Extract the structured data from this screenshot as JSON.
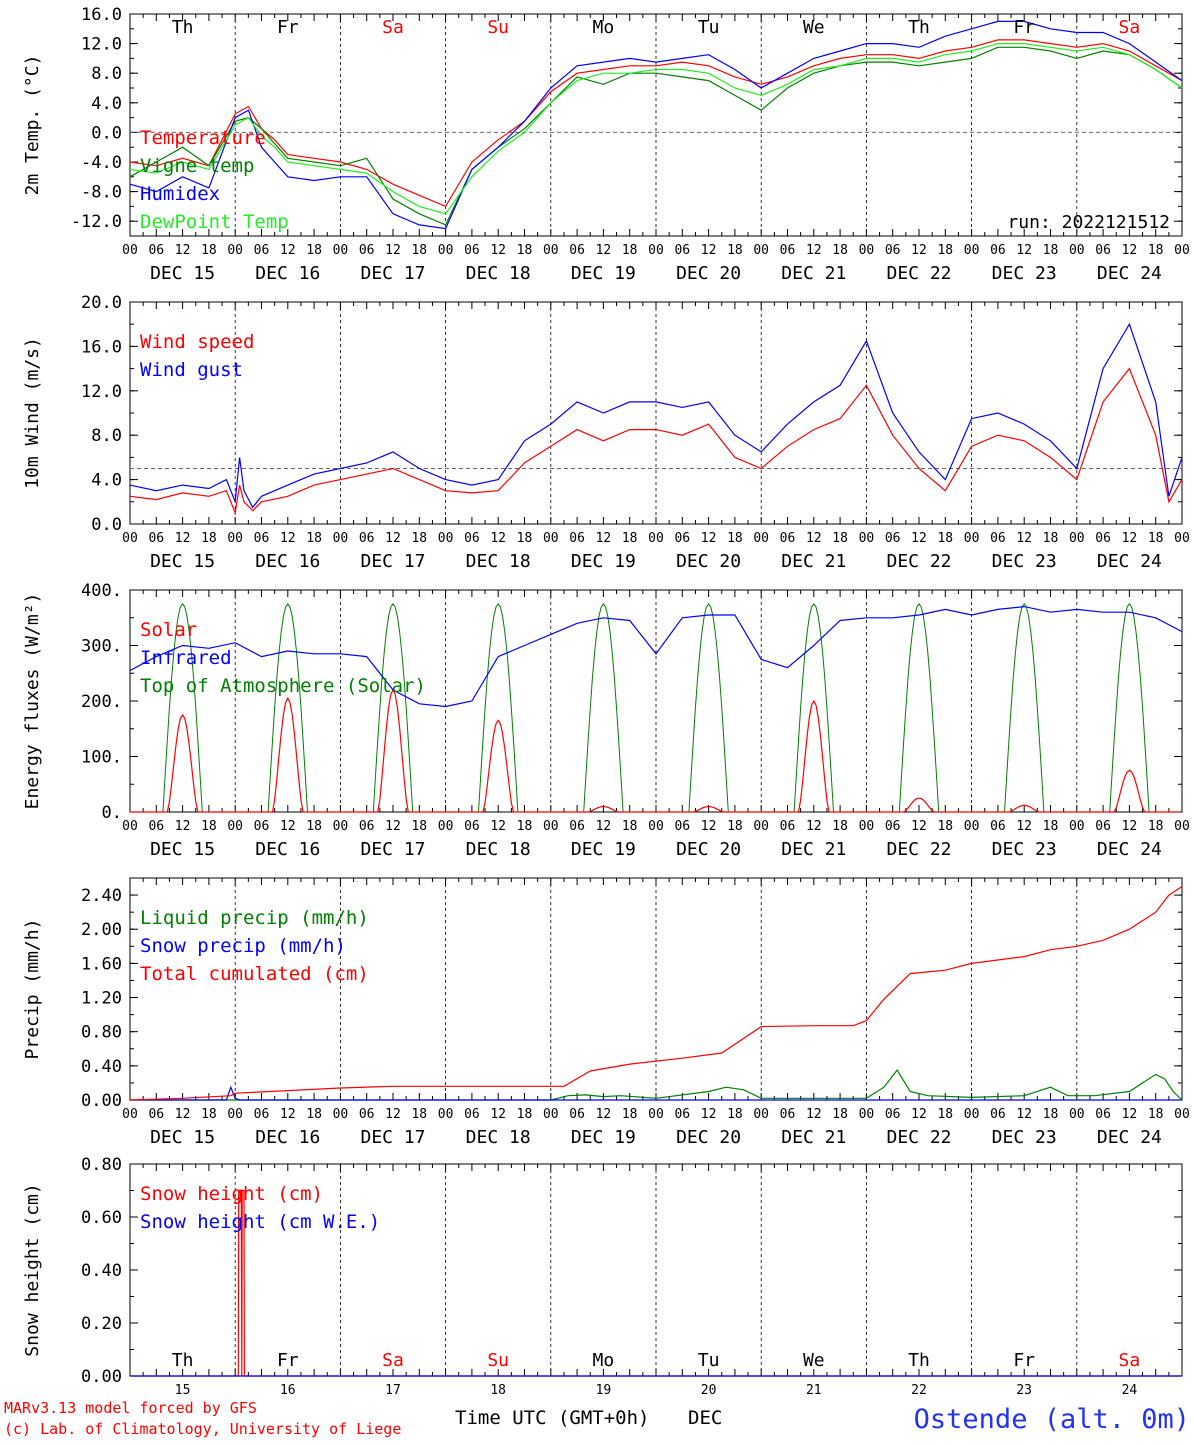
{
  "footer": {
    "credit_line1": "MARv3.13 model forced by GFS",
    "credit_line2": "(c) Lab. of Climatology, University of Liege",
    "xlabel": "Time UTC (GMT+0h)",
    "month": "DEC",
    "station": "Ostende (alt. 0m)"
  },
  "colors": {
    "red": "#ff0000",
    "green": "#008000",
    "blue": "#0000ff",
    "lime": "#22ee22",
    "weekend": "#ff0000",
    "weekday": "#000000"
  },
  "days": [
    {
      "abbr": "Th",
      "date": "DEC 15",
      "num": "15",
      "weekend": false
    },
    {
      "abbr": "Fr",
      "date": "DEC 16",
      "num": "16",
      "weekend": false
    },
    {
      "abbr": "Sa",
      "date": "DEC 17",
      "num": "17",
      "weekend": true
    },
    {
      "abbr": "Su",
      "date": "DEC 18",
      "num": "18",
      "weekend": true
    },
    {
      "abbr": "Mo",
      "date": "DEC 19",
      "num": "19",
      "weekend": false
    },
    {
      "abbr": "Tu",
      "date": "DEC 20",
      "num": "20",
      "weekend": false
    },
    {
      "abbr": "We",
      "date": "DEC 21",
      "num": "21",
      "weekend": false
    },
    {
      "abbr": "Th",
      "date": "DEC 22",
      "num": "22",
      "weekend": false
    },
    {
      "abbr": "Fr",
      "date": "DEC 23",
      "num": "23",
      "weekend": false
    },
    {
      "abbr": "Sa",
      "date": "DEC 24",
      "num": "24",
      "weekend": true
    }
  ],
  "hour_ticks": [
    "00",
    "06",
    "12",
    "18"
  ],
  "chart_data": [
    {
      "type": "line",
      "ylabel": "2m Temp. (°C)",
      "ylim": [
        -14,
        16
      ],
      "yticks": [
        "16.0",
        "12.0",
        "8.0",
        "4.0",
        "0.0",
        "-4.0",
        "-8.0",
        "-12.0"
      ],
      "yticks_values": [
        16,
        12,
        8,
        4,
        0,
        -4,
        -8,
        -12
      ],
      "ref_line": 0,
      "annotation": "run: 2022121512",
      "x_hours": [
        0,
        6,
        12,
        18,
        24,
        27,
        30,
        33,
        36,
        42,
        48,
        54,
        60,
        66,
        72,
        78,
        84,
        90,
        96,
        102,
        108,
        114,
        120,
        126,
        132,
        138,
        144,
        150,
        156,
        162,
        168,
        174,
        180,
        186,
        192,
        198,
        204,
        210,
        216,
        222,
        228,
        234,
        240
      ],
      "series": [
        {
          "name": "Temperature",
          "color": "red",
          "values": [
            -4,
            -4.5,
            -3.5,
            -4.5,
            2.5,
            3.5,
            0.5,
            -1,
            -3,
            -3.5,
            -4,
            -5,
            -7,
            -8.5,
            -10,
            -4,
            -1,
            1.5,
            5.5,
            8,
            8.5,
            9,
            9,
            9.5,
            9,
            7.5,
            6.5,
            7.5,
            9,
            10,
            10.5,
            10.5,
            10,
            11,
            11.5,
            12.5,
            12.5,
            12,
            11.5,
            12,
            11,
            9,
            7
          ]
        },
        {
          "name": "Vigne temp",
          "color": "green",
          "values": [
            -6,
            -4,
            -2,
            -4.5,
            1.5,
            2,
            0.5,
            -1.5,
            -3.5,
            -4,
            -4.5,
            -3.5,
            -9,
            -11,
            -12.5,
            -5,
            -2,
            0.5,
            4,
            7.5,
            6.5,
            8,
            8,
            7.5,
            7,
            5,
            3,
            6,
            8,
            9,
            9.5,
            9.5,
            9,
            9.5,
            10,
            11.5,
            11.5,
            11,
            10,
            11,
            10.5,
            8.5,
            6
          ]
        },
        {
          "name": "Humidex",
          "color": "blue",
          "values": [
            -7,
            -8,
            -6,
            -7.5,
            2,
            3,
            -2,
            -4,
            -6,
            -6.5,
            -6,
            -6,
            -11,
            -12.5,
            -13,
            -5,
            -2,
            1.5,
            6,
            9,
            9.5,
            10,
            9.5,
            10,
            10.5,
            8.5,
            6,
            8,
            10,
            11,
            12,
            12,
            11.5,
            13,
            14,
            15,
            15,
            14,
            13.5,
            13.5,
            12,
            9.5,
            7
          ]
        },
        {
          "name": "DewPoint Temp",
          "color": "lime",
          "values": [
            -5,
            -5.5,
            -4,
            -5,
            1,
            2,
            -0.5,
            -2,
            -4,
            -4.5,
            -5,
            -5.5,
            -8,
            -10,
            -11,
            -6,
            -2.5,
            0,
            4,
            7,
            8,
            8,
            8.5,
            8.5,
            8,
            6,
            5,
            6.5,
            8.5,
            9,
            10,
            10,
            9.5,
            10.5,
            11,
            12,
            12,
            11.5,
            11,
            11.5,
            10.5,
            8.5,
            6
          ]
        }
      ]
    },
    {
      "type": "line",
      "ylabel": "10m Wind (m/s)",
      "ylim": [
        0,
        20
      ],
      "yticks": [
        "20.0",
        "16.0",
        "12.0",
        "8.0",
        "4.0",
        "0.0"
      ],
      "yticks_values": [
        20,
        16,
        12,
        8,
        4,
        0
      ],
      "ref_line": 5,
      "x_hours": [
        0,
        6,
        12,
        18,
        22,
        24,
        25,
        26,
        28,
        30,
        36,
        42,
        48,
        54,
        60,
        66,
        72,
        78,
        84,
        90,
        96,
        102,
        108,
        114,
        120,
        126,
        132,
        138,
        144,
        150,
        156,
        162,
        168,
        174,
        180,
        186,
        192,
        198,
        204,
        210,
        216,
        222,
        228,
        234,
        237,
        240
      ],
      "series": [
        {
          "name": "Wind speed",
          "color": "red",
          "values": [
            2.5,
            2.2,
            2.8,
            2.5,
            3,
            1,
            3.5,
            2,
            1.2,
            2,
            2.5,
            3.5,
            4,
            4.5,
            5,
            4,
            3,
            2.8,
            3,
            5.5,
            7,
            8.5,
            7.5,
            8.5,
            8.5,
            8,
            9,
            6,
            5,
            7,
            8.5,
            9.5,
            12.5,
            8,
            5,
            3,
            7,
            8,
            7.5,
            6,
            4,
            11,
            14,
            8,
            2,
            4
          ]
        },
        {
          "name": "Wind gust",
          "color": "blue",
          "values": [
            3.5,
            3,
            3.5,
            3.2,
            4,
            2,
            6,
            3,
            1.5,
            2.5,
            3.5,
            4.5,
            5,
            5.5,
            6.5,
            5,
            4,
            3.5,
            4,
            7.5,
            9,
            11,
            10,
            11,
            11,
            10.5,
            11,
            8,
            6.5,
            9,
            11,
            12.5,
            16.5,
            10,
            6.5,
            4,
            9.5,
            10,
            9,
            7.5,
            5,
            14,
            18,
            11,
            2.5,
            6
          ]
        }
      ]
    },
    {
      "type": "line",
      "ylabel": "Energy fluxes (W/m²)",
      "ylim": [
        0,
        400
      ],
      "yticks": [
        "400.",
        "300.",
        "200.",
        "100.",
        "0."
      ],
      "yticks_values": [
        400,
        300,
        200,
        100,
        0
      ],
      "legend": [
        "Solar",
        "Infrared",
        "Top of Atmosphere (Solar)"
      ],
      "solar_peaks": [
        175,
        205,
        220,
        165,
        10,
        10,
        200,
        25,
        12,
        75
      ],
      "toa_peak": 375,
      "ir_hours": [
        0,
        6,
        12,
        18,
        24,
        30,
        36,
        42,
        48,
        54,
        60,
        66,
        72,
        78,
        84,
        90,
        96,
        102,
        108,
        114,
        120,
        126,
        132,
        138,
        144,
        150,
        156,
        162,
        168,
        174,
        180,
        186,
        192,
        198,
        204,
        210,
        216,
        222,
        228,
        234,
        240
      ],
      "ir_values": [
        255,
        280,
        300,
        295,
        305,
        280,
        290,
        285,
        285,
        280,
        220,
        195,
        190,
        200,
        280,
        300,
        320,
        340,
        350,
        345,
        285,
        350,
        355,
        355,
        275,
        260,
        300,
        345,
        350,
        350,
        355,
        365,
        355,
        365,
        370,
        360,
        365,
        360,
        360,
        350,
        325
      ]
    },
    {
      "type": "line",
      "ylabel": "Precip (mm/h)",
      "ylim": [
        0,
        2.6
      ],
      "yticks": [
        "2.40",
        "2.00",
        "1.60",
        "1.20",
        "0.80",
        "0.40",
        "0.00"
      ],
      "yticks_values": [
        2.4,
        2.0,
        1.6,
        1.2,
        0.8,
        0.4,
        0.0
      ],
      "series": [
        {
          "name": "Liquid precip (mm/h)",
          "color": "green",
          "x_hours": [
            0,
            96,
            100,
            104,
            108,
            112,
            120,
            132,
            136,
            140,
            144,
            168,
            172,
            175,
            178,
            182,
            192,
            204,
            210,
            214,
            220,
            228,
            234,
            236,
            238,
            240
          ],
          "values": [
            0,
            0,
            0.05,
            0.06,
            0.04,
            0.05,
            0.02,
            0.1,
            0.15,
            0.12,
            0.02,
            0.02,
            0.15,
            0.35,
            0.1,
            0.05,
            0.03,
            0.05,
            0.15,
            0.05,
            0.05,
            0.1,
            0.3,
            0.25,
            0.1,
            0
          ]
        },
        {
          "name": "Snow precip (mm/h)",
          "color": "blue",
          "x_hours": [
            0,
            22,
            23,
            24,
            25,
            240
          ],
          "values": [
            0,
            0,
            0.15,
            0.02,
            0,
            0
          ]
        },
        {
          "name": "Total cumulated (cm)",
          "color": "red",
          "x_hours": [
            0,
            12,
            23,
            24,
            36,
            48,
            60,
            72,
            84,
            96,
            99,
            105,
            114,
            126,
            135,
            144,
            156,
            165,
            168,
            172,
            178,
            186,
            192,
            204,
            210,
            216,
            222,
            228,
            234,
            237,
            240
          ],
          "values": [
            0,
            0.02,
            0.05,
            0.08,
            0.11,
            0.14,
            0.16,
            0.16,
            0.16,
            0.16,
            0.16,
            0.34,
            0.42,
            0.49,
            0.55,
            0.86,
            0.87,
            0.87,
            0.93,
            1.18,
            1.48,
            1.52,
            1.6,
            1.68,
            1.76,
            1.8,
            1.87,
            2.0,
            2.2,
            2.4,
            2.5
          ]
        }
      ]
    },
    {
      "type": "line",
      "ylabel": "Snow height (cm)",
      "ylim": [
        0,
        0.8
      ],
      "yticks": [
        "0.80",
        "0.60",
        "0.40",
        "0.20",
        "0.00"
      ],
      "yticks_values": [
        0.8,
        0.6,
        0.4,
        0.2,
        0.0
      ],
      "series": [
        {
          "name": "Snow height (cm)",
          "color": "red",
          "x_hours": [
            0,
            24.7,
            24.8,
            25.4,
            25.5,
            25.6,
            26.0,
            26.1,
            240
          ],
          "values": [
            0,
            0,
            0.7,
            0.7,
            0,
            0.7,
            0.7,
            0,
            0
          ]
        },
        {
          "name": "Snow height (cm W.E.)",
          "color": "blue",
          "x_hours": [
            0,
            240
          ],
          "values": [
            0,
            0
          ]
        }
      ]
    }
  ]
}
